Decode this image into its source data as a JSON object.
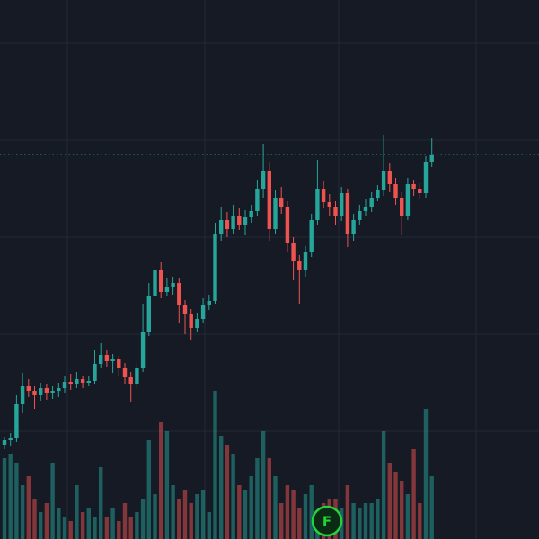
{
  "chart_data": {
    "type": "candlestick",
    "open": [
      105,
      110,
      112,
      150,
      170,
      165,
      160,
      168,
      162,
      165,
      168,
      175,
      172,
      178,
      174,
      176,
      195,
      205,
      198,
      200,
      190,
      180,
      172,
      190,
      230,
      270,
      300,
      275,
      280,
      285,
      260,
      250,
      235,
      245,
      260,
      265,
      340,
      355,
      345,
      360,
      350,
      358,
      365,
      390,
      410,
      345,
      380,
      370,
      330,
      310,
      300,
      320,
      355,
      390,
      375,
      370,
      360,
      385,
      340,
      355,
      365,
      370,
      380,
      388,
      410,
      395,
      380,
      360,
      395,
      390,
      385,
      420
    ],
    "high": [
      114,
      118,
      160,
      185,
      178,
      170,
      174,
      172,
      170,
      174,
      182,
      184,
      186,
      182,
      182,
      210,
      218,
      210,
      206,
      204,
      196,
      186,
      196,
      262,
      285,
      325,
      308,
      290,
      292,
      290,
      266,
      256,
      252,
      268,
      272,
      352,
      370,
      364,
      372,
      368,
      366,
      372,
      400,
      440,
      420,
      388,
      392,
      376,
      336,
      316,
      326,
      362,
      422,
      398,
      384,
      376,
      392,
      390,
      362,
      372,
      378,
      386,
      394,
      450,
      418,
      402,
      386,
      402,
      400,
      396,
      426,
      446
    ],
    "low": [
      100,
      104,
      108,
      140,
      158,
      145,
      154,
      155,
      156,
      158,
      162,
      166,
      168,
      168,
      170,
      172,
      190,
      192,
      185,
      182,
      172,
      152,
      168,
      186,
      226,
      266,
      268,
      270,
      272,
      240,
      228,
      222,
      230,
      240,
      255,
      262,
      332,
      336,
      340,
      344,
      338,
      352,
      360,
      380,
      332,
      340,
      362,
      320,
      288,
      262,
      292,
      314,
      350,
      368,
      360,
      350,
      354,
      325,
      332,
      350,
      360,
      364,
      376,
      382,
      386,
      372,
      338,
      355,
      382,
      378,
      380,
      414
    ],
    "close": [
      110,
      112,
      150,
      170,
      165,
      160,
      168,
      162,
      165,
      168,
      175,
      172,
      178,
      174,
      176,
      195,
      205,
      198,
      200,
      190,
      180,
      172,
      190,
      230,
      270,
      300,
      275,
      280,
      285,
      260,
      250,
      235,
      245,
      260,
      265,
      340,
      355,
      345,
      360,
      350,
      358,
      365,
      390,
      410,
      345,
      380,
      370,
      330,
      310,
      300,
      320,
      355,
      390,
      375,
      370,
      360,
      385,
      340,
      355,
      365,
      370,
      380,
      388,
      410,
      395,
      380,
      360,
      395,
      390,
      385,
      420,
      428
    ],
    "volume": [
      90,
      95,
      85,
      60,
      70,
      45,
      30,
      40,
      85,
      35,
      25,
      20,
      60,
      30,
      35,
      25,
      80,
      25,
      35,
      20,
      40,
      25,
      30,
      45,
      110,
      50,
      130,
      120,
      60,
      45,
      55,
      40,
      50,
      55,
      30,
      165,
      115,
      105,
      95,
      60,
      55,
      70,
      90,
      120,
      90,
      70,
      40,
      60,
      55,
      35,
      50,
      60,
      30,
      40,
      45,
      45,
      35,
      60,
      40,
      35,
      40,
      40,
      45,
      120,
      85,
      75,
      65,
      50,
      100,
      40,
      145,
      70
    ],
    "ylim": [
      0,
      600
    ],
    "yticks": [
      120,
      228,
      336,
      444,
      552
    ],
    "y2lim": [
      0,
      600
    ],
    "grid": true,
    "up_color": "#26a69a",
    "down_color": "#ef5350",
    "marker_label": "F"
  }
}
